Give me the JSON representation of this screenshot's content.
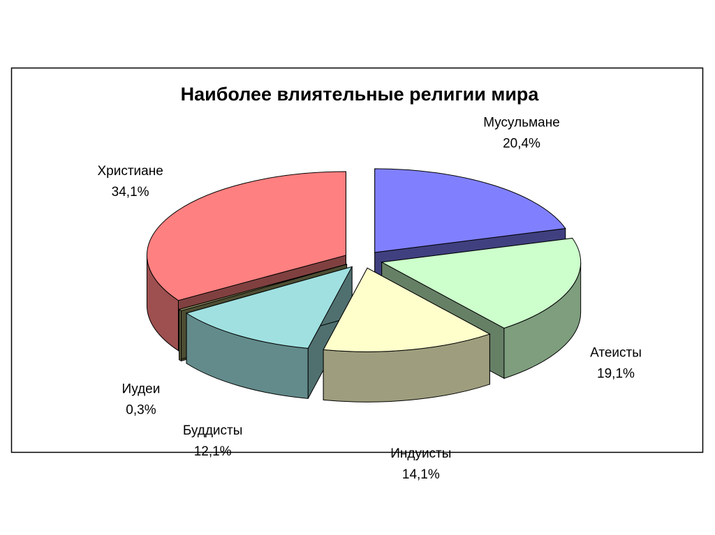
{
  "chart_data": {
    "type": "pie",
    "title": "Наиболее влиятельные религии мира",
    "categories": [
      "Мусульмане",
      "Атеисты",
      "Индуисты",
      "Буддисты",
      "Иудеи",
      "Христиане"
    ],
    "values": [
      20.4,
      19.1,
      14.1,
      12.1,
      0.3,
      34.1
    ],
    "value_labels": [
      "20,4%",
      "19,1%",
      "14,1%",
      "12,1%",
      "0,3%",
      "34,1%"
    ],
    "colors": [
      "#8080ff",
      "#ccffcc",
      "#ffffcc",
      "#a0e0e0",
      "#999966",
      "#ff8080"
    ]
  }
}
